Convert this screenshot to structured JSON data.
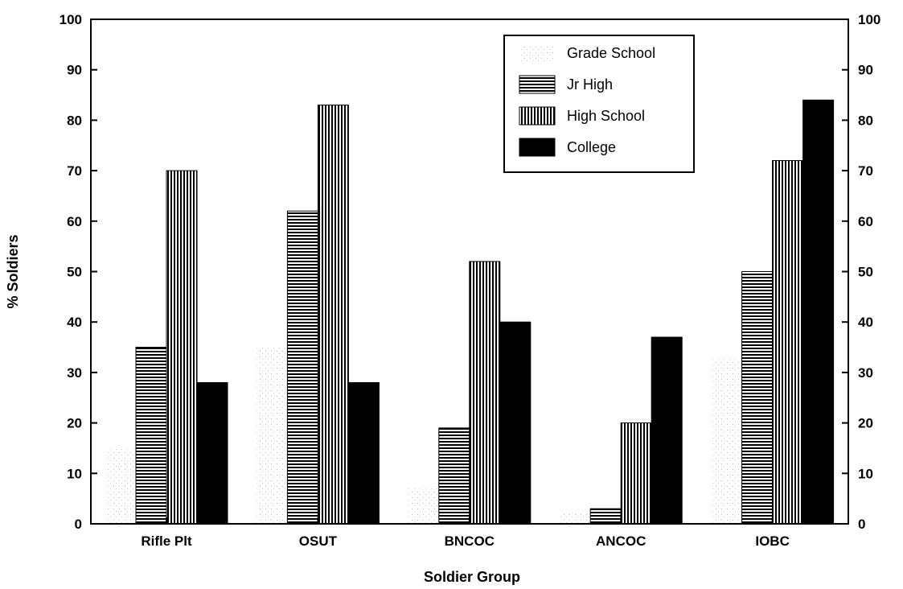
{
  "chart_data": {
    "type": "bar",
    "title": "",
    "xlabel": "Soldier Group",
    "ylabel": "% Soldiers",
    "ylim": [
      0,
      100
    ],
    "yticks": [
      0,
      10,
      20,
      30,
      40,
      50,
      60,
      70,
      80,
      90,
      100
    ],
    "right_axis_ticks": true,
    "grid": false,
    "legend_position": "top-right",
    "categories": [
      "Rifle Plt",
      "OSUT",
      "BNCOC",
      "ANCOC",
      "IOBC"
    ],
    "series": [
      {
        "name": "Grade School",
        "pattern": "sparse-dots",
        "values": [
          15,
          35,
          7,
          2,
          33
        ]
      },
      {
        "name": "Jr High",
        "pattern": "horizontal-lines",
        "values": [
          35,
          62,
          19,
          3,
          50
        ]
      },
      {
        "name": "High School",
        "pattern": "vertical-lines",
        "values": [
          70,
          83,
          52,
          20,
          72
        ]
      },
      {
        "name": "College",
        "pattern": "solid-black",
        "values": [
          28,
          28,
          40,
          37,
          84
        ]
      }
    ]
  }
}
